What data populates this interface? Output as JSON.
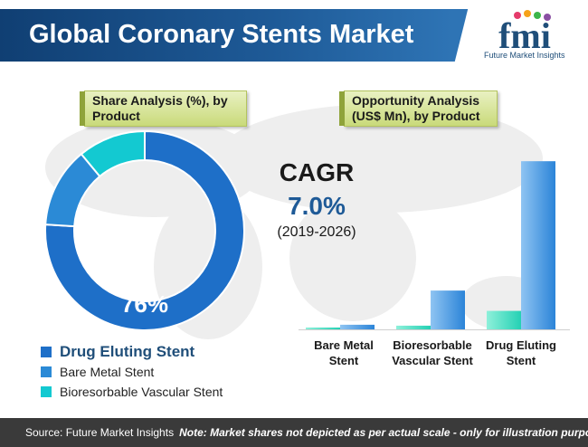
{
  "header": {
    "title": "Global Coronary Stents Market"
  },
  "logo": {
    "letters": "fmi",
    "tagline": "Future Market Insights"
  },
  "labels": {
    "share_analysis": "Share Analysis (%), by Product",
    "opportunity_analysis": "Opportunity Analysis (US$ Mn), by Product"
  },
  "cagr": {
    "title": "CAGR",
    "value": "7.0%",
    "period": "(2019-2026)"
  },
  "footer": {
    "source": "Source: Future Market Insights",
    "note": "Note: Market shares not depicted as per actual scale - only for illustration purposes"
  },
  "colors": {
    "drug_eluting": "#1e6fc8",
    "bare_metal": "#2b8ad6",
    "bioresorbable": "#13c9d1",
    "bar_light": "#24d1b4",
    "bar_dark": "#2b84d8"
  },
  "chart_data": [
    {
      "type": "pie",
      "title": "Share Analysis (%), by Product",
      "categories": [
        "Drug Eluting Stent",
        "Bare Metal Stent",
        "Bioresorbable Vascular Stent"
      ],
      "values": [
        76,
        13,
        11
      ],
      "data_labels": [
        "76%"
      ],
      "legend": "bottom",
      "donut": true
    },
    {
      "type": "bar",
      "title": "Opportunity Analysis (US$ Mn), by Product",
      "categories": [
        "Bare Metal Stent",
        "Bioresorbable Vascular Stent",
        "Drug Eluting Stent"
      ],
      "series": [
        {
          "values": [
            2,
            4,
            20
          ]
        },
        {
          "values": [
            5,
            42,
            182
          ]
        }
      ],
      "ylim": [
        0,
        190
      ],
      "grid": false
    }
  ]
}
